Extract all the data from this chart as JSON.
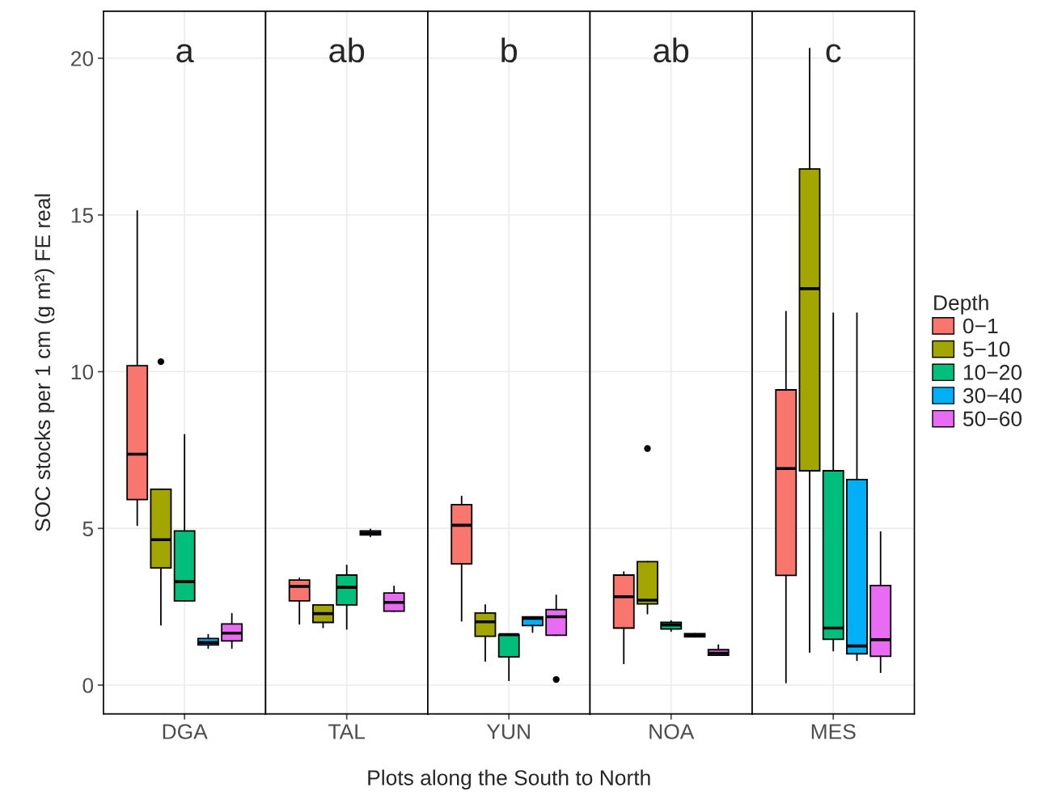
{
  "chart_data": [
    {
      "type": "box",
      "categories": [
        "DGA"
      ],
      "ylabel": "SOC stocks per 1 cm (g m²) FE real",
      "xlabel": "Plots along the South to North",
      "annotations": [
        "a"
      ],
      "ylim": [
        -0.92,
        21.5
      ],
      "yticks": [
        0,
        5,
        10,
        15,
        20
      ],
      "grid": true,
      "series": [
        {
          "color": "#f8766d",
          "boxes": [
            {
              "low": 5.1,
              "q1": 5.92,
              "median": 7.37,
              "q3": 10.19,
              "high": 15.13
            }
          ]
        },
        {
          "color": "#a3a500",
          "boxes": [
            {
              "low": 1.92,
              "q1": 3.74,
              "median": 4.64,
              "q3": 6.25,
              "high": 6.25,
              "outliers": [
                10.32
              ]
            }
          ]
        },
        {
          "color": "#00bf7d",
          "boxes": [
            {
              "low": 2.69,
              "q1": 2.69,
              "median": 3.3,
              "q3": 4.92,
              "high": 7.99
            }
          ]
        },
        {
          "color": "#00b0f6",
          "boxes": [
            {
              "low": 1.18,
              "q1": 1.28,
              "median": 1.36,
              "q3": 1.49,
              "high": 1.61
            }
          ]
        },
        {
          "color": "#e76bf3",
          "boxes": [
            {
              "low": 1.18,
              "q1": 1.41,
              "median": 1.66,
              "q3": 1.95,
              "high": 2.28
            }
          ]
        }
      ]
    },
    {
      "type": "box",
      "categories": [
        "TAL"
      ],
      "annotations": [
        "ab"
      ],
      "ylim": [
        -0.92,
        21.5
      ],
      "yticks": [
        0,
        5,
        10,
        15,
        20
      ],
      "grid": true,
      "tick_labels": "x",
      "series": [
        {
          "color": "#f8766d",
          "boxes": [
            {
              "low": 1.95,
              "q1": 2.69,
              "median": 3.15,
              "q3": 3.35,
              "high": 3.41
            }
          ]
        },
        {
          "color": "#a3a500",
          "boxes": [
            {
              "low": 1.84,
              "q1": 2.0,
              "median": 2.28,
              "q3": 2.56,
              "high": 2.56
            }
          ]
        },
        {
          "color": "#00bf7d",
          "boxes": [
            {
              "low": 1.79,
              "q1": 2.56,
              "median": 3.12,
              "q3": 3.51,
              "high": 3.82
            }
          ]
        },
        {
          "color": "#00b0f6",
          "boxes": [
            {
              "low": 4.74,
              "q1": 4.79,
              "median": 4.85,
              "q3": 4.92,
              "high": 4.97
            }
          ]
        },
        {
          "color": "#e76bf3",
          "boxes": [
            {
              "low": 2.36,
              "q1": 2.36,
              "median": 2.64,
              "q3": 2.94,
              "high": 3.15
            }
          ]
        }
      ]
    },
    {
      "type": "box",
      "categories": [
        "YUN"
      ],
      "annotations": [
        "b"
      ],
      "ylim": [
        -0.92,
        21.5
      ],
      "yticks": [
        0,
        5,
        10,
        15,
        20
      ],
      "grid": true,
      "tick_labels": "x",
      "series": [
        {
          "color": "#f8766d",
          "boxes": [
            {
              "low": 2.05,
              "q1": 3.87,
              "median": 5.1,
              "q3": 5.76,
              "high": 6.02
            }
          ]
        },
        {
          "color": "#a3a500",
          "boxes": [
            {
              "low": 0.77,
              "q1": 1.56,
              "median": 2.02,
              "q3": 2.3,
              "high": 2.56
            }
          ]
        },
        {
          "color": "#00bf7d",
          "boxes": [
            {
              "low": 0.15,
              "q1": 0.9,
              "median": 1.61,
              "q3": 1.61,
              "high": 1.61
            }
          ]
        },
        {
          "color": "#00b0f6",
          "boxes": [
            {
              "low": 1.69,
              "q1": 1.9,
              "median": 2.13,
              "q3": 2.18,
              "high": 2.18
            }
          ]
        },
        {
          "color": "#e76bf3",
          "boxes": [
            {
              "low": 1.59,
              "q1": 1.59,
              "median": 2.18,
              "q3": 2.41,
              "high": 2.87,
              "outliers": [
                0.18
              ]
            }
          ]
        }
      ]
    },
    {
      "type": "box",
      "categories": [
        "NOA"
      ],
      "annotations": [
        "ab"
      ],
      "ylim": [
        -0.92,
        21.5
      ],
      "yticks": [
        0,
        5,
        10,
        15,
        20
      ],
      "grid": true,
      "tick_labels": "x",
      "series": [
        {
          "color": "#f8766d",
          "boxes": [
            {
              "low": 0.69,
              "q1": 1.82,
              "median": 2.82,
              "q3": 3.51,
              "high": 3.61
            }
          ]
        },
        {
          "color": "#a3a500",
          "boxes": [
            {
              "low": 2.28,
              "q1": 2.59,
              "median": 2.71,
              "q3": 3.94,
              "high": 3.94,
              "outliers": [
                7.55
              ]
            }
          ]
        },
        {
          "color": "#00bf7d",
          "boxes": [
            {
              "low": 1.72,
              "q1": 1.79,
              "median": 1.92,
              "q3": 2.0,
              "high": 2.05
            }
          ]
        },
        {
          "color": "#00b0f6",
          "boxes": [
            {
              "low": 1.54,
              "q1": 1.54,
              "median": 1.59,
              "q3": 1.64,
              "high": 1.64
            }
          ]
        },
        {
          "color": "#e76bf3",
          "boxes": [
            {
              "low": 0.95,
              "q1": 0.95,
              "median": 1.02,
              "q3": 1.13,
              "high": 1.28
            }
          ]
        }
      ]
    },
    {
      "type": "box",
      "categories": [
        "MES"
      ],
      "annotations": [
        "c"
      ],
      "ylim": [
        -0.92,
        21.5
      ],
      "yticks": [
        0,
        5,
        10,
        15,
        20
      ],
      "grid": true,
      "legend": "right",
      "legend_title": "Depth",
      "tick_labels": "x",
      "series": [
        {
          "name": "0−1",
          "color": "#f8766d",
          "boxes": [
            {
              "low": 0.08,
              "q1": 3.5,
              "median": 6.91,
              "q3": 9.42,
              "high": 11.92
            }
          ]
        },
        {
          "name": "5−10",
          "color": "#a3a500",
          "boxes": [
            {
              "low": 1.05,
              "q1": 6.84,
              "median": 12.65,
              "q3": 16.47,
              "high": 20.31
            }
          ]
        },
        {
          "name": "10−20",
          "color": "#00bf7d",
          "boxes": [
            {
              "low": 1.1,
              "q1": 1.46,
              "median": 1.82,
              "q3": 6.84,
              "high": 11.87
            }
          ]
        },
        {
          "name": "30−40",
          "color": "#00b0f6",
          "boxes": [
            {
              "low": 0.79,
              "q1": 1.0,
              "median": 1.25,
              "q3": 6.56,
              "high": 11.87
            }
          ]
        },
        {
          "name": "50−60",
          "color": "#e76bf3",
          "boxes": [
            {
              "low": 0.41,
              "q1": 0.92,
              "median": 1.45,
              "q3": 3.18,
              "high": 4.89
            }
          ]
        }
      ]
    }
  ]
}
